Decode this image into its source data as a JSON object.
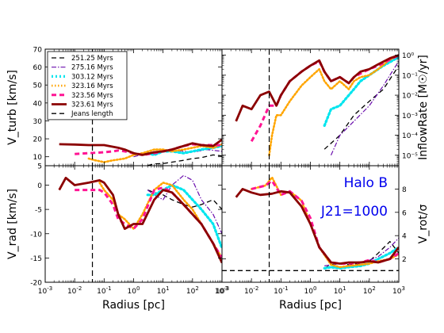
{
  "chart_data": [
    {
      "type": "line",
      "panel": "top-left",
      "xscale": "log",
      "xlim": [
        0.001,
        1000
      ],
      "ylim": [
        5,
        70
      ],
      "yticks": [
        5,
        10,
        20,
        30,
        40,
        50,
        60,
        70
      ],
      "ylabel": "V_turb [km/s]",
      "legend": {
        "placement": "top-left",
        "entries": [
          "251.25 Myrs",
          "275.16 Myrs",
          "303.12 Myrs",
          "323.16 Myrs",
          "323.56 Myrs",
          "323.61 Myrs",
          "Jeans length"
        ]
      },
      "series": [
        {
          "name": "251.25 Myrs",
          "color": "#000000",
          "style": "dash",
          "x": [
            3,
            5,
            10,
            20,
            50,
            100,
            200,
            500,
            1000
          ],
          "y": [
            5.1,
            6,
            6.2,
            7,
            8,
            9,
            9.5,
            11,
            10.5
          ]
        },
        {
          "name": "275.16 Myrs",
          "color": "#6a0dad",
          "style": "dashdot",
          "x": [
            1,
            3,
            10,
            30,
            100,
            300,
            1000
          ],
          "y": [
            10,
            12,
            13,
            13.5,
            12.5,
            14,
            13
          ]
        },
        {
          "name": "303.12 Myrs",
          "color": "#00e5ee",
          "style": "dot",
          "x": [
            3,
            5,
            10,
            20,
            50,
            100,
            200,
            500,
            1000
          ],
          "y": [
            12,
            11,
            13,
            13,
            12,
            13,
            14,
            15,
            16
          ]
        },
        {
          "name": "323.16 Myrs",
          "color": "#ffa500",
          "style": "dot",
          "x": [
            0.03,
            0.05,
            0.1,
            0.2,
            0.5,
            1,
            2,
            5,
            10,
            20,
            50,
            100,
            200,
            500,
            1000
          ],
          "y": [
            9,
            8,
            7,
            8,
            9,
            11,
            12,
            14,
            14,
            13,
            14,
            15,
            16,
            15,
            17
          ]
        },
        {
          "name": "323.56 Myrs",
          "color": "#ff1493",
          "style": "dash",
          "x": [
            0.01,
            0.03,
            0.1,
            0.2,
            0.3,
            0.5,
            1,
            2,
            5,
            10,
            20,
            50,
            100,
            200,
            500,
            1000
          ],
          "y": [
            11.5,
            12,
            12.5,
            13,
            13.5,
            13,
            12,
            11,
            12,
            13,
            14,
            16,
            17,
            16.5,
            16.5,
            16.5
          ]
        },
        {
          "name": "323.61 Myrs",
          "color": "#8b0000",
          "style": "solid",
          "x": [
            0.003,
            0.01,
            0.03,
            0.1,
            0.3,
            0.5,
            1,
            2,
            5,
            10,
            20,
            50,
            100,
            200,
            500,
            1000
          ],
          "y": [
            17,
            16.8,
            16.5,
            16.5,
            15,
            14,
            12,
            11,
            12.5,
            13,
            14,
            16,
            17.5,
            16.5,
            16,
            19.5
          ]
        }
      ],
      "jeans_length_x": 0.04
    },
    {
      "type": "line",
      "panel": "top-right",
      "xscale": "log",
      "yscale": "log",
      "xlim": [
        0.001,
        1000
      ],
      "ylim": [
        3e-06,
        2
      ],
      "yticks": [
        1e-05,
        0.0001,
        0.001,
        0.01,
        0.1,
        1
      ],
      "ytick_labels": [
        "10⁻⁵",
        "10⁻⁴",
        "10⁻³",
        "10⁻²",
        "10⁻¹",
        "10⁰"
      ],
      "ylabel": "InflowRate [M☉/yr]",
      "series": [
        {
          "name": "251.25 Myrs",
          "color": "#000000",
          "style": "dash",
          "x": [
            3,
            10,
            30,
            100,
            300,
            1000
          ],
          "y": [
            2e-05,
            0.0001,
            0.001,
            0.005,
            0.02,
            0.3
          ]
        },
        {
          "name": "275.16 Myrs",
          "color": "#6a0dad",
          "style": "dashdot",
          "x": [
            5,
            10,
            30,
            100,
            300,
            500,
            1000
          ],
          "y": [
            1e-05,
            0.0001,
            0.0005,
            0.003,
            0.03,
            0.1,
            0.5
          ]
        },
        {
          "name": "303.12 Myrs",
          "color": "#00e5ee",
          "style": "dot",
          "x": [
            3,
            5,
            10,
            20,
            30,
            50,
            100,
            300,
            1000
          ],
          "y": [
            0.0003,
            0.002,
            0.003,
            0.01,
            0.02,
            0.05,
            0.1,
            0.3,
            0.8
          ]
        },
        {
          "name": "323.16 Myrs",
          "color": "#ffa500",
          "style": "dot",
          "x": [
            0.04,
            0.05,
            0.07,
            0.1,
            0.2,
            0.5,
            1,
            2,
            3,
            5,
            10,
            20,
            30,
            50,
            100,
            200,
            500,
            1000
          ],
          "y": [
            1e-05,
            0.0001,
            0.001,
            0.001,
            0.005,
            0.03,
            0.08,
            0.2,
            0.05,
            0.02,
            0.05,
            0.02,
            0.05,
            0.08,
            0.1,
            0.2,
            0.6,
            1.0
          ]
        },
        {
          "name": "323.56 Myrs",
          "color": "#ff1493",
          "style": "dash",
          "x": [
            0.01,
            0.02,
            0.04,
            0.07,
            0.1,
            0.2,
            0.5,
            1,
            2,
            3,
            5,
            10,
            20,
            30,
            50,
            100,
            200,
            500,
            1000
          ],
          "y": [
            5e-05,
            0.0003,
            0.003,
            0.003,
            0.01,
            0.05,
            0.15,
            0.3,
            0.5,
            0.15,
            0.05,
            0.08,
            0.04,
            0.08,
            0.12,
            0.2,
            0.3,
            0.6,
            1.0
          ]
        },
        {
          "name": "323.61 Myrs",
          "color": "#8b0000",
          "style": "solid",
          "x": [
            0.003,
            0.005,
            0.01,
            0.02,
            0.04,
            0.07,
            0.1,
            0.2,
            0.5,
            1,
            2,
            3,
            5,
            10,
            20,
            30,
            50,
            100,
            200,
            500,
            1000
          ],
          "y": [
            0.0005,
            0.003,
            0.002,
            0.01,
            0.015,
            0.003,
            0.01,
            0.05,
            0.15,
            0.3,
            0.55,
            0.15,
            0.05,
            0.08,
            0.04,
            0.08,
            0.15,
            0.2,
            0.35,
            0.7,
            1.0
          ]
        }
      ],
      "jeans_length_x": 0.04
    },
    {
      "type": "line",
      "panel": "bottom-left",
      "xscale": "log",
      "xlim": [
        0.001,
        1000
      ],
      "ylim": [
        -20,
        4
      ],
      "yticks": [
        -20,
        -15,
        -10,
        -5,
        0
      ],
      "xlabel": "Radius [pc]",
      "ylabel": "V_rad [km/s]",
      "series": [
        {
          "name": "251.25 Myrs",
          "color": "#000000",
          "style": "dash",
          "x": [
            3,
            5,
            10,
            20,
            50,
            100,
            200,
            500,
            1000
          ],
          "y": [
            -1,
            -1.5,
            -2,
            -3,
            -4,
            -4.5,
            -4,
            -3,
            -5
          ]
        },
        {
          "name": "275.16 Myrs",
          "color": "#6a0dad",
          "style": "dashdot",
          "x": [
            3,
            5,
            10,
            20,
            50,
            100,
            200,
            500,
            1000
          ],
          "y": [
            -1,
            -2,
            -3,
            0,
            2,
            1,
            -3,
            -6,
            -10
          ]
        },
        {
          "name": "303.12 Myrs",
          "color": "#00e5ee",
          "style": "dot",
          "x": [
            3,
            5,
            10,
            20,
            50,
            100,
            200,
            500,
            1000
          ],
          "y": [
            -2,
            -2,
            -1,
            0,
            -1,
            -3,
            -5,
            -8,
            -13
          ]
        },
        {
          "name": "323.16 Myrs",
          "color": "#ffa500",
          "style": "dot",
          "x": [
            0.07,
            0.1,
            0.2,
            0.3,
            0.5,
            1,
            2,
            5,
            10,
            20,
            50,
            100,
            200,
            500,
            1000
          ],
          "y": [
            0.5,
            -1,
            -3,
            -6,
            -7,
            -9,
            -6,
            -1,
            0.5,
            0,
            -3,
            -5,
            -8,
            -12,
            -15
          ]
        },
        {
          "name": "323.56 Myrs",
          "color": "#ff1493",
          "style": "dash",
          "x": [
            0.01,
            0.03,
            0.07,
            0.1,
            0.2,
            0.3,
            0.5,
            1,
            2,
            5,
            10,
            20,
            50,
            100,
            200,
            500,
            1000
          ],
          "y": [
            -1,
            -1,
            -1,
            -1.5,
            -4,
            -7,
            -8,
            -9,
            -7,
            -1,
            -0.5,
            -1.5,
            -4,
            -6,
            -8,
            -12,
            -15
          ]
        },
        {
          "name": "323.61 Myrs",
          "color": "#8b0000",
          "style": "solid",
          "x": [
            0.003,
            0.005,
            0.01,
            0.03,
            0.07,
            0.1,
            0.2,
            0.3,
            0.5,
            1,
            2,
            5,
            10,
            20,
            50,
            100,
            200,
            500,
            1000
          ],
          "y": [
            -1,
            1.5,
            0,
            0.5,
            1,
            0.5,
            -2,
            -6,
            -9,
            -8,
            -8,
            -3,
            -1,
            -1.5,
            -4,
            -6,
            -8,
            -12,
            -16
          ]
        }
      ],
      "jeans_length_x": 0.04
    },
    {
      "type": "line",
      "panel": "bottom-right",
      "xscale": "log",
      "xlim": [
        0.001,
        1000
      ],
      "ylim": [
        0,
        10
      ],
      "yticks": [
        2,
        4,
        6,
        8
      ],
      "xlabel": "Radius [pc]",
      "ylabel": "V_rot/σ",
      "annotations": [
        "Halo B",
        "J21=1000"
      ],
      "series": [
        {
          "name": "251.25 Myrs",
          "color": "#000000",
          "style": "dash",
          "x": [
            3,
            5,
            10,
            20,
            50,
            100,
            200,
            500,
            1000
          ],
          "y": [
            1.2,
            1.5,
            1.6,
            1.5,
            1.6,
            1.8,
            2.5,
            3.5,
            2.5
          ]
        },
        {
          "name": "275.16 Myrs",
          "color": "#6a0dad",
          "style": "dashdot",
          "x": [
            3,
            5,
            10,
            20,
            50,
            100,
            200,
            500,
            1000
          ],
          "y": [
            1.4,
            1.5,
            1.6,
            1.6,
            1.7,
            1.9,
            2.2,
            3.0,
            3.8
          ]
        },
        {
          "name": "303.12 Myrs",
          "color": "#00e5ee",
          "style": "dot",
          "x": [
            3,
            5,
            10,
            20,
            50,
            100,
            200,
            500,
            1000
          ],
          "y": [
            1.2,
            1.3,
            1.2,
            1.3,
            1.4,
            1.6,
            2.0,
            2.5,
            3.0
          ]
        },
        {
          "name": "323.16 Myrs",
          "color": "#ffa500",
          "style": "dot",
          "x": [
            0.01,
            0.03,
            0.05,
            0.1,
            0.2,
            0.5,
            1,
            2,
            5,
            10,
            20,
            50,
            100,
            200,
            500,
            1000
          ],
          "y": [
            8,
            8.3,
            9,
            7.5,
            7.8,
            7,
            5,
            3,
            1.5,
            1.3,
            1.4,
            1.5,
            1.6,
            1.8,
            2.0,
            2.4
          ]
        },
        {
          "name": "323.56 Myrs",
          "color": "#ff1493",
          "style": "dash",
          "x": [
            0.01,
            0.03,
            0.05,
            0.1,
            0.2,
            0.5,
            1,
            2,
            5,
            10,
            20,
            50,
            100,
            200,
            500,
            1000
          ],
          "y": [
            8,
            8.3,
            8.7,
            7.5,
            7.8,
            7,
            5.5,
            3,
            1.7,
            1.6,
            1.6,
            1.7,
            1.9,
            1.7,
            2.0,
            2.5
          ]
        },
        {
          "name": "323.61 Myrs",
          "color": "#8b0000",
          "style": "solid",
          "x": [
            0.003,
            0.005,
            0.01,
            0.02,
            0.05,
            0.1,
            0.2,
            0.5,
            1,
            2,
            5,
            10,
            20,
            50,
            100,
            200,
            500,
            1000
          ],
          "y": [
            7.3,
            8,
            7.7,
            7.5,
            7.6,
            7.8,
            7.7,
            6.5,
            5,
            3,
            1.7,
            1.6,
            1.7,
            1.7,
            1.8,
            1.7,
            2.0,
            3.0
          ]
        },
        {
          "name": "Jeans length",
          "color": "#000000",
          "style": "dash",
          "x": [
            0.001,
            1000
          ],
          "y": [
            1,
            1
          ]
        }
      ],
      "jeans_length_x": 0.04
    }
  ]
}
